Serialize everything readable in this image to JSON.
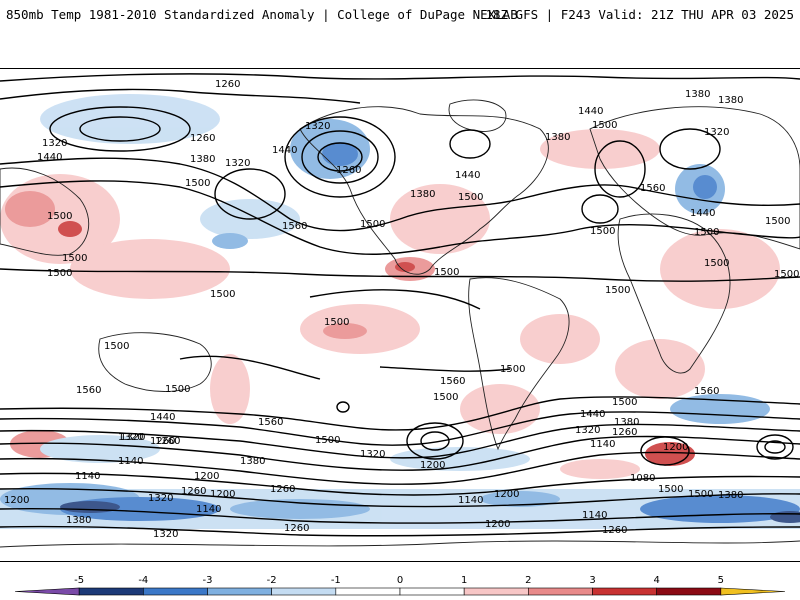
{
  "header": {
    "title": "850mb Temp 1981-2010 Standardized Anomaly | College of DuPage NEXLAB",
    "run_info": "18Z GFS | F243 Valid: 21Z THU APR 03 2025"
  },
  "colorbar": {
    "ticks": [
      "-5",
      "-4",
      "-3",
      "-2",
      "-1",
      "0",
      "1",
      "2",
      "3",
      "4",
      "5"
    ],
    "colors": [
      "#7a4aa8",
      "#1c3a78",
      "#3b78c8",
      "#7fb0e0",
      "#c4dcf2",
      "#ffffff",
      "#ffffff",
      "#f7c6c6",
      "#e88a8a",
      "#c83232",
      "#8b0a14",
      "#f0c020"
    ]
  },
  "contours": {
    "labels": [
      {
        "text": "1260"
      },
      {
        "text": "1320"
      },
      {
        "text": "1260"
      },
      {
        "text": "1320"
      },
      {
        "text": "1440"
      },
      {
        "text": "1380"
      },
      {
        "text": "1320"
      },
      {
        "text": "1440"
      },
      {
        "text": "1260"
      },
      {
        "text": "1500"
      },
      {
        "text": "1500"
      },
      {
        "text": "1560"
      },
      {
        "text": "1500"
      },
      {
        "text": "1500"
      },
      {
        "text": "1500"
      },
      {
        "text": "1380"
      },
      {
        "text": "1440"
      },
      {
        "text": "1500"
      },
      {
        "text": "1440"
      },
      {
        "text": "1380"
      },
      {
        "text": "1500"
      },
      {
        "text": "1380"
      },
      {
        "text": "1380"
      },
      {
        "text": "1320"
      },
      {
        "text": "1560"
      },
      {
        "text": "1440"
      },
      {
        "text": "1500"
      },
      {
        "text": "1500"
      },
      {
        "text": "1500"
      },
      {
        "text": "1500"
      },
      {
        "text": "1500"
      },
      {
        "text": "1500"
      },
      {
        "text": "1500"
      },
      {
        "text": "1500"
      },
      {
        "text": "1500"
      },
      {
        "text": "1500"
      },
      {
        "text": "1560"
      },
      {
        "text": "1500"
      },
      {
        "text": "1560"
      },
      {
        "text": "1500"
      },
      {
        "text": "1560"
      },
      {
        "text": "1500"
      },
      {
        "text": "1500"
      },
      {
        "text": "1440"
      },
      {
        "text": "1380"
      },
      {
        "text": "1260"
      },
      {
        "text": "1320"
      },
      {
        "text": "1320"
      },
      {
        "text": "1260"
      },
      {
        "text": "1140"
      },
      {
        "text": "1320"
      },
      {
        "text": "1200"
      },
      {
        "text": "1200"
      },
      {
        "text": "1380"
      },
      {
        "text": "1440"
      },
      {
        "text": "1320"
      },
      {
        "text": "1260"
      },
      {
        "text": "1140"
      },
      {
        "text": "1200"
      },
      {
        "text": "1080"
      },
      {
        "text": "1140"
      },
      {
        "text": "1200"
      },
      {
        "text": "1260"
      },
      {
        "text": "1200"
      },
      {
        "text": "1320"
      },
      {
        "text": "1380"
      },
      {
        "text": "1320"
      },
      {
        "text": "1380"
      },
      {
        "text": "1140"
      },
      {
        "text": "1140"
      },
      {
        "text": "1200"
      },
      {
        "text": "1260"
      },
      {
        "text": "1260"
      },
      {
        "text": "1200"
      },
      {
        "text": "1140"
      },
      {
        "text": "1260"
      },
      {
        "text": "1500"
      },
      {
        "text": "1500"
      },
      {
        "text": "1560"
      },
      {
        "text": "1500"
      }
    ]
  }
}
